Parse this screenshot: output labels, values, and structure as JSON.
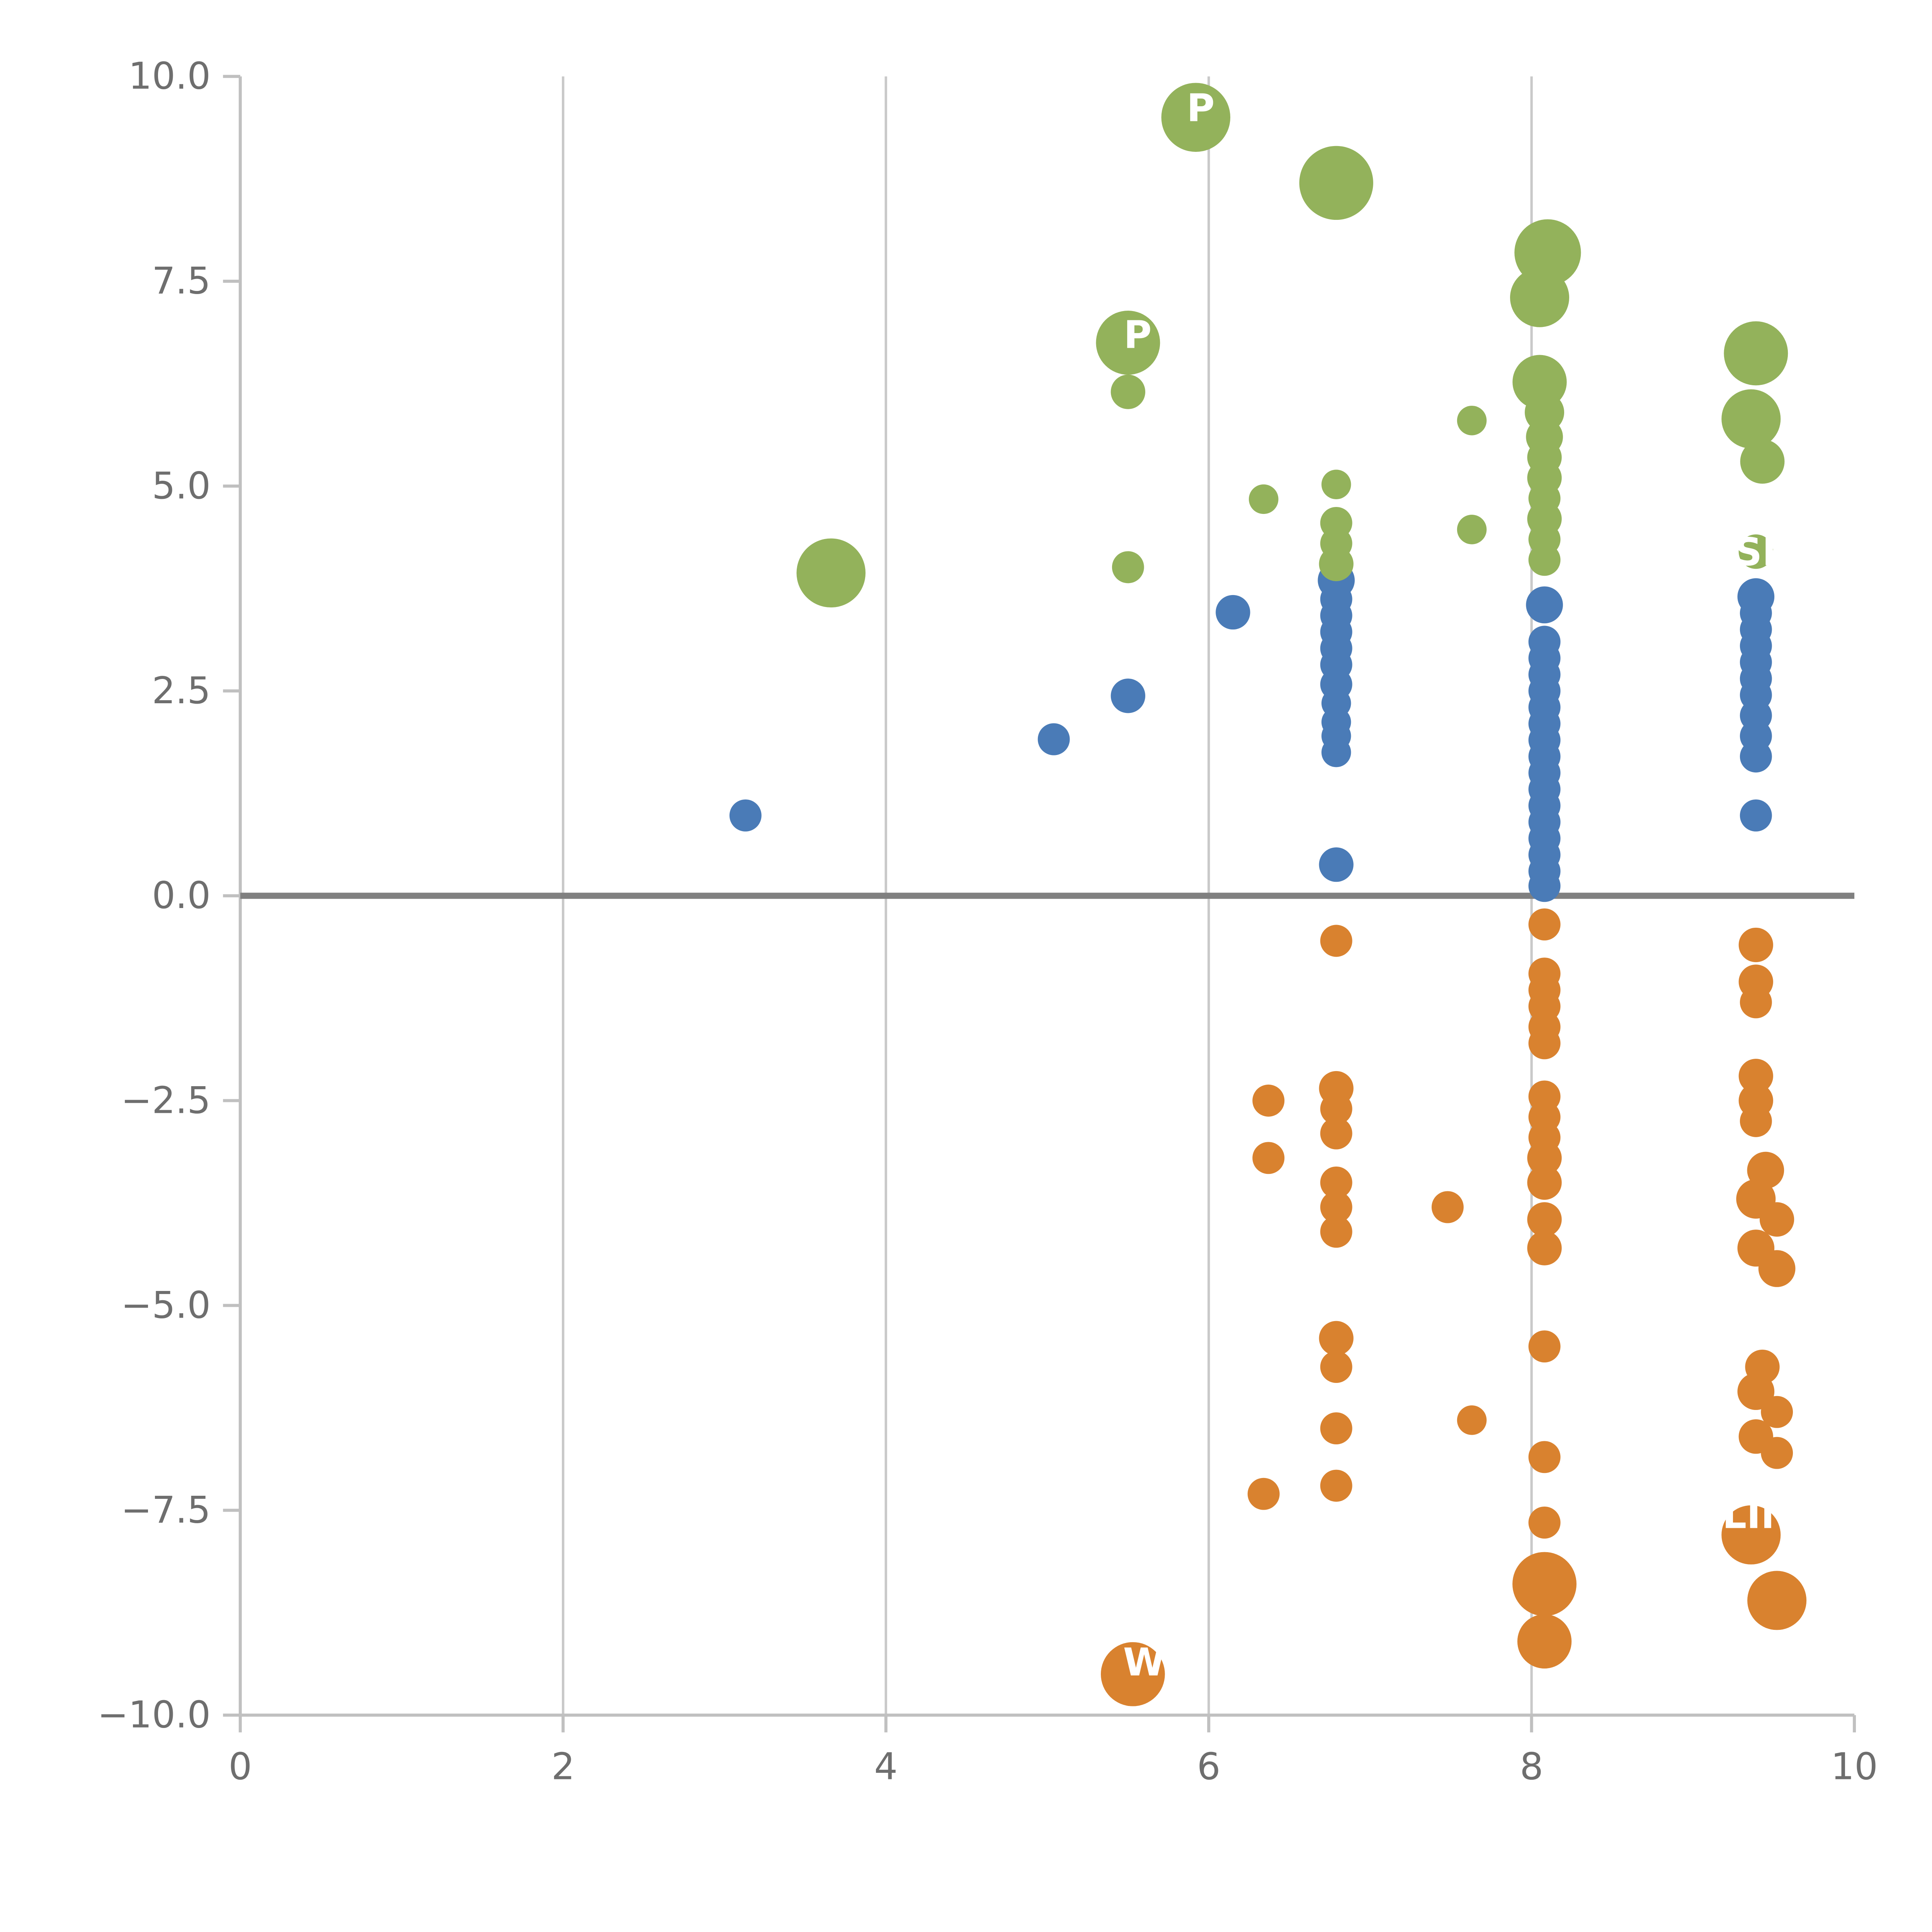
{
  "chart_data": {
    "type": "scatter",
    "title": "",
    "xlabel": "",
    "ylabel": "",
    "xlim": [
      0,
      10
    ],
    "ylim": [
      -10,
      10
    ],
    "grid": "vertical-only",
    "grid_x": [
      2,
      4,
      6,
      8
    ],
    "x_ticks": [
      {
        "v": 0,
        "label": "0"
      },
      {
        "v": 2,
        "label": "2"
      },
      {
        "v": 4,
        "label": "4"
      },
      {
        "v": 6,
        "label": "6"
      },
      {
        "v": 8,
        "label": "8"
      },
      {
        "v": 10,
        "label": "10"
      }
    ],
    "y_ticks": [
      {
        "v": -10,
        "label": "−10.0"
      },
      {
        "v": -7.5,
        "label": "−7.5"
      },
      {
        "v": -5,
        "label": "−5.0"
      },
      {
        "v": -2.5,
        "label": "−2.5"
      },
      {
        "v": 0,
        "label": "0.0"
      },
      {
        "v": 2.5,
        "label": "2.5"
      },
      {
        "v": 5,
        "label": "5.0"
      },
      {
        "v": 7.5,
        "label": "7.5"
      },
      {
        "v": 10,
        "label": "10.0"
      }
    ],
    "zero_line": {
      "y": 0,
      "color": "#808080",
      "width": 5
    },
    "style": {
      "grid_color": "#c9c9c9",
      "axis_color": "#c0c0c0",
      "tick_label_color": "#6e6e6e",
      "green": "#93b25b",
      "blue": "#4a7bb7",
      "orange": "#d9822f",
      "label_text_color": "#ffffff"
    },
    "series": [
      {
        "name": "green-series",
        "color": "#93b25b",
        "points": [
          [
            5.92,
            9.5,
            28
          ],
          [
            6.79,
            8.7,
            30
          ],
          [
            8.1,
            7.85,
            27
          ],
          [
            8.05,
            7.3,
            24
          ],
          [
            5.5,
            6.75,
            26
          ],
          [
            9.39,
            6.62,
            26
          ],
          [
            8.05,
            6.27,
            22
          ],
          [
            5.5,
            6.15,
            14
          ],
          [
            9.36,
            5.82,
            24
          ],
          [
            7.63,
            5.8,
            12
          ],
          [
            8.08,
            5.9,
            16
          ],
          [
            8.08,
            5.6,
            15
          ],
          [
            8.08,
            5.35,
            14
          ],
          [
            9.43,
            5.3,
            18
          ],
          [
            8.08,
            5.1,
            14
          ],
          [
            6.79,
            5.02,
            12
          ],
          [
            6.34,
            4.84,
            12
          ],
          [
            8.08,
            4.85,
            13
          ],
          [
            8.08,
            4.6,
            14
          ],
          [
            6.79,
            4.55,
            13
          ],
          [
            6.79,
            4.3,
            13
          ],
          [
            7.63,
            4.47,
            12
          ],
          [
            8.08,
            4.35,
            13
          ],
          [
            8.08,
            4.1,
            13
          ],
          [
            6.79,
            4.05,
            14
          ],
          [
            5.5,
            4.01,
            13
          ],
          [
            3.66,
            3.94,
            28
          ],
          [
            9.39,
            4.2,
            14
          ]
        ]
      },
      {
        "name": "blue-series",
        "color": "#4a7bb7",
        "points": [
          [
            3.13,
            0.98,
            13
          ],
          [
            5.04,
            1.91,
            13
          ],
          [
            5.5,
            2.44,
            14
          ],
          [
            6.15,
            3.46,
            14
          ],
          [
            6.79,
            3.85,
            15
          ],
          [
            6.79,
            3.62,
            13
          ],
          [
            6.79,
            3.42,
            13
          ],
          [
            6.79,
            3.22,
            13
          ],
          [
            6.79,
            3.02,
            13
          ],
          [
            6.79,
            2.82,
            13
          ],
          [
            6.79,
            2.58,
            13
          ],
          [
            6.79,
            2.35,
            12
          ],
          [
            6.79,
            2.12,
            12
          ],
          [
            6.79,
            1.95,
            12
          ],
          [
            6.79,
            1.75,
            12
          ],
          [
            6.79,
            0.38,
            14
          ],
          [
            8.08,
            3.55,
            15
          ],
          [
            8.08,
            3.1,
            13
          ],
          [
            8.08,
            2.9,
            13
          ],
          [
            8.08,
            2.7,
            13
          ],
          [
            8.08,
            2.5,
            13
          ],
          [
            8.08,
            2.3,
            13
          ],
          [
            8.08,
            2.1,
            13
          ],
          [
            8.08,
            1.9,
            13
          ],
          [
            8.08,
            1.7,
            13
          ],
          [
            8.08,
            1.5,
            13
          ],
          [
            8.08,
            1.3,
            13
          ],
          [
            8.08,
            1.1,
            13
          ],
          [
            8.08,
            0.9,
            13
          ],
          [
            8.08,
            0.7,
            13
          ],
          [
            8.08,
            0.5,
            13
          ],
          [
            8.08,
            0.3,
            13
          ],
          [
            8.08,
            0.12,
            13
          ],
          [
            9.39,
            3.65,
            15
          ],
          [
            9.39,
            3.45,
            13
          ],
          [
            9.39,
            3.25,
            13
          ],
          [
            9.39,
            3.05,
            13
          ],
          [
            9.39,
            2.85,
            13
          ],
          [
            9.39,
            2.65,
            13
          ],
          [
            9.39,
            2.45,
            13
          ],
          [
            9.39,
            2.2,
            13
          ],
          [
            9.39,
            1.95,
            13
          ],
          [
            9.39,
            1.7,
            13
          ],
          [
            9.39,
            0.98,
            13
          ]
        ]
      },
      {
        "name": "orange-series",
        "color": "#d9822f",
        "points": [
          [
            6.79,
            -0.55,
            13
          ],
          [
            8.08,
            -0.35,
            13
          ],
          [
            9.39,
            -0.6,
            14
          ],
          [
            8.08,
            -0.95,
            13
          ],
          [
            8.08,
            -1.15,
            13
          ],
          [
            8.08,
            -1.35,
            13
          ],
          [
            8.08,
            -1.6,
            13
          ],
          [
            8.08,
            -1.8,
            13
          ],
          [
            9.39,
            -1.05,
            14
          ],
          [
            9.39,
            -1.3,
            13
          ],
          [
            6.37,
            -2.5,
            13
          ],
          [
            6.79,
            -2.35,
            14
          ],
          [
            6.79,
            -2.6,
            13
          ],
          [
            6.79,
            -2.9,
            13
          ],
          [
            9.39,
            -2.2,
            14
          ],
          [
            9.39,
            -2.5,
            14
          ],
          [
            9.39,
            -2.75,
            13
          ],
          [
            6.37,
            -3.2,
            13
          ],
          [
            8.08,
            -2.45,
            13
          ],
          [
            8.08,
            -2.7,
            13
          ],
          [
            8.08,
            -2.95,
            13
          ],
          [
            8.08,
            -3.2,
            14
          ],
          [
            8.08,
            -3.5,
            14
          ],
          [
            6.79,
            -3.5,
            13
          ],
          [
            6.79,
            -3.8,
            13
          ],
          [
            6.79,
            -4.1,
            13
          ],
          [
            7.48,
            -3.8,
            13
          ],
          [
            9.45,
            -3.35,
            15
          ],
          [
            9.39,
            -3.7,
            16
          ],
          [
            9.52,
            -3.95,
            14
          ],
          [
            9.39,
            -4.3,
            15
          ],
          [
            9.52,
            -4.55,
            15
          ],
          [
            8.08,
            -3.95,
            14
          ],
          [
            8.08,
            -4.3,
            14
          ],
          [
            6.79,
            -5.4,
            14
          ],
          [
            6.79,
            -5.75,
            13
          ],
          [
            8.08,
            -5.5,
            13
          ],
          [
            9.43,
            -5.75,
            14
          ],
          [
            9.39,
            -6.05,
            15
          ],
          [
            9.52,
            -6.3,
            13
          ],
          [
            9.39,
            -6.6,
            14
          ],
          [
            9.52,
            -6.8,
            13
          ],
          [
            6.79,
            -6.5,
            13
          ],
          [
            7.63,
            -6.4,
            12
          ],
          [
            8.08,
            -6.85,
            13
          ],
          [
            6.34,
            -7.3,
            13
          ],
          [
            6.79,
            -7.2,
            13
          ],
          [
            8.08,
            -7.65,
            13
          ],
          [
            9.36,
            -7.8,
            24
          ],
          [
            8.08,
            -8.4,
            26
          ],
          [
            9.52,
            -8.6,
            24
          ],
          [
            8.08,
            -9.1,
            22
          ],
          [
            5.53,
            -9.5,
            26
          ]
        ]
      }
    ],
    "point_labels": [
      {
        "x": 5.95,
        "y": 9.62,
        "text": "P"
      },
      {
        "x": 5.56,
        "y": 6.85,
        "text": "P"
      },
      {
        "x": 9.43,
        "y": 4.2,
        "text": "SP"
      },
      {
        "x": 9.4,
        "y": -7.55,
        "text": "LIN"
      },
      {
        "x": 5.6,
        "y": -9.35,
        "text": "W"
      }
    ]
  }
}
